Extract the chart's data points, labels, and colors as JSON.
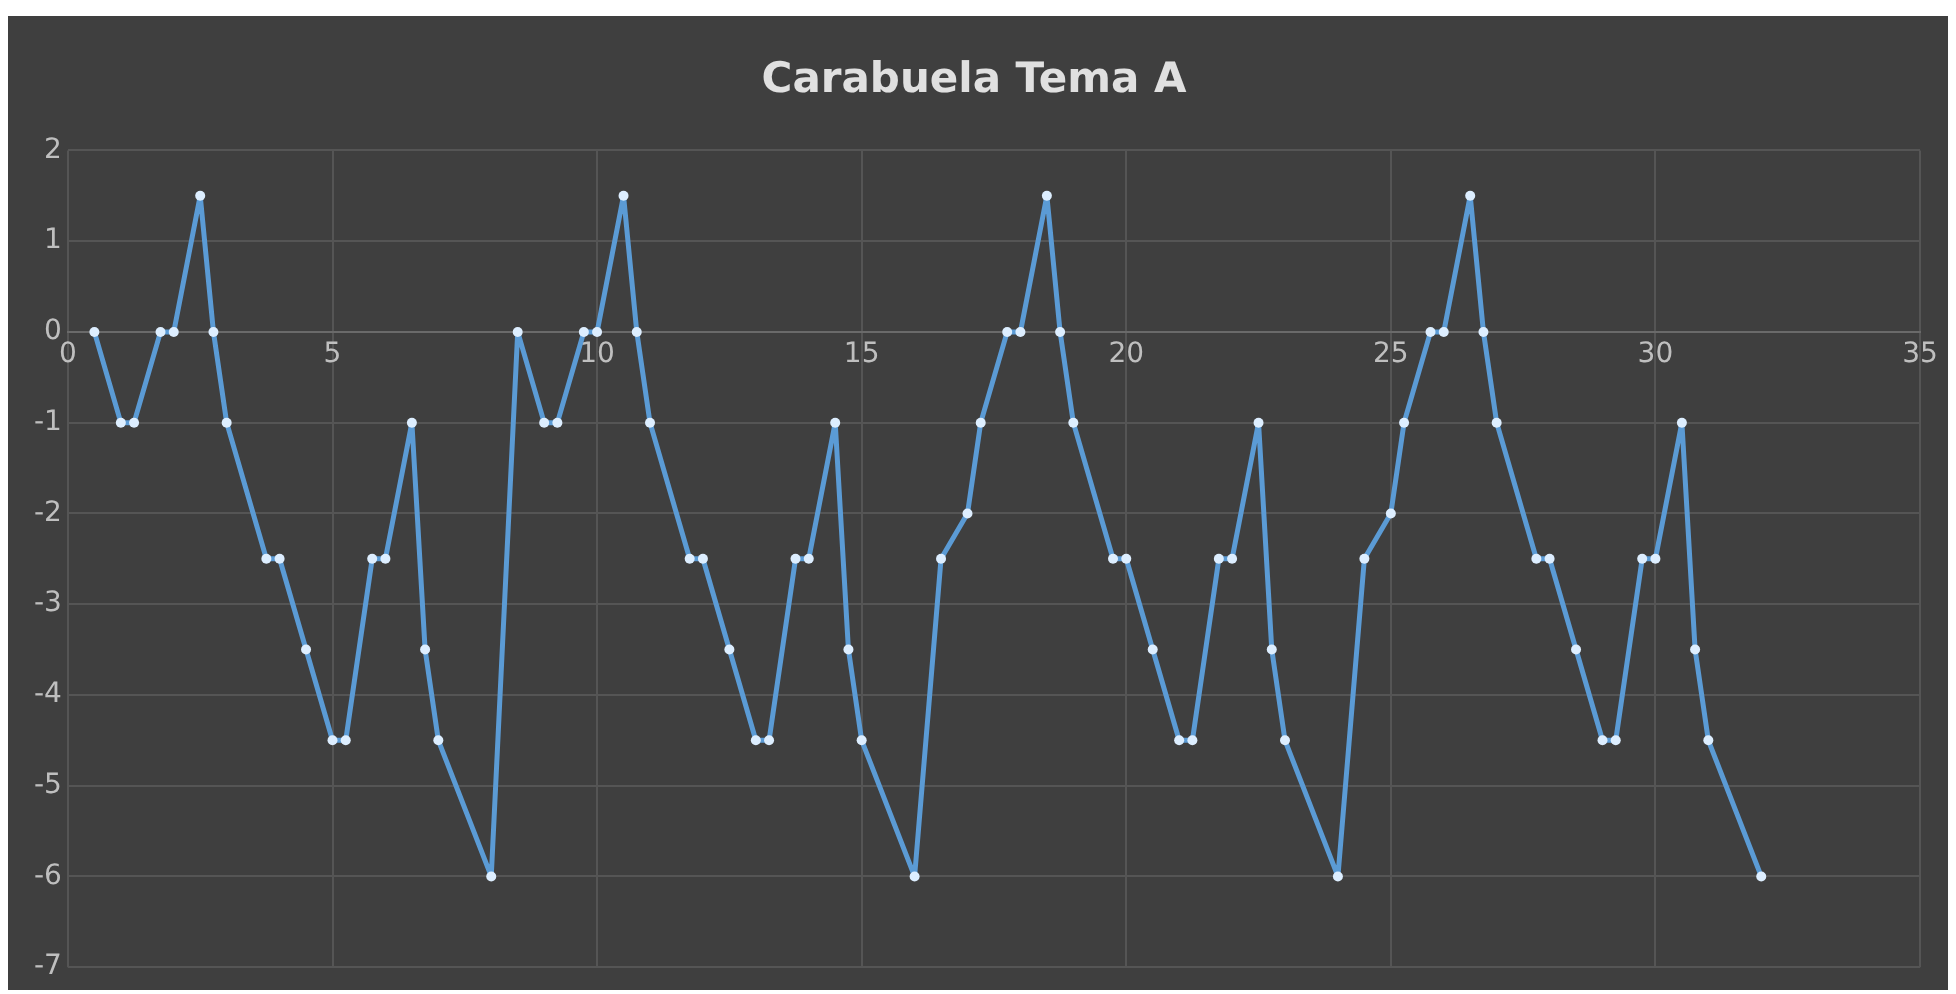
{
  "chart_data": {
    "type": "line",
    "title": "Carabuela Tema A",
    "xlim": [
      0,
      35
    ],
    "xticks": [
      0,
      5,
      10,
      15,
      20,
      25,
      30,
      35
    ],
    "ylim": [
      -7,
      2
    ],
    "yticks": [
      -7,
      -6,
      -5,
      -4,
      -3,
      -2,
      -1,
      0,
      1,
      2
    ],
    "grid": true,
    "legend": false,
    "marker": "circle",
    "line_style": "solid",
    "series": [
      {
        "color": "#5b9bd5",
        "x": [
          0.5,
          1,
          1.25,
          1.75,
          2,
          2.5,
          2.75,
          3,
          3.75,
          4,
          4.5,
          5,
          5.25,
          5.75,
          6,
          6.5,
          6.75,
          7,
          8,
          8.5,
          9,
          9.25,
          9.75,
          10,
          10.5,
          10.75,
          11,
          11.75,
          12,
          12.5,
          13,
          13.25,
          13.75,
          14,
          14.5,
          14.75,
          15,
          16,
          16.5,
          17,
          17.25,
          17.75,
          18,
          18.5,
          18.75,
          19,
          19.75,
          20,
          20.5,
          21,
          21.25,
          21.75,
          22,
          22.5,
          22.75,
          23,
          24,
          24.5,
          25,
          25.25,
          25.75,
          26,
          26.5,
          26.75,
          27,
          27.75,
          28,
          28.5,
          29,
          29.25,
          29.75,
          30,
          30.5,
          30.75,
          31,
          32
        ],
        "values": [
          0,
          -1,
          -1,
          0,
          0,
          1.5,
          0,
          -1,
          -2.5,
          -2.5,
          -3.5,
          -4.5,
          -4.5,
          -2.5,
          -2.5,
          -1,
          -3.5,
          -4.5,
          -6,
          0,
          -1,
          -1,
          0,
          0,
          1.5,
          0,
          -1,
          -2.5,
          -2.5,
          -3.5,
          -4.5,
          -4.5,
          -2.5,
          -2.5,
          -1,
          -3.5,
          -4.5,
          -6,
          -2.5,
          -2,
          -1,
          0,
          0,
          1.5,
          0,
          -1,
          -2.5,
          -2.5,
          -3.5,
          -4.5,
          -4.5,
          -2.5,
          -2.5,
          -1,
          -3.5,
          -4.5,
          -6,
          -2.5,
          -2,
          -1,
          0,
          0,
          1.5,
          0,
          -1,
          -2.5,
          -2.5,
          -3.5,
          -4.5,
          -4.5,
          -2.5,
          -2.5,
          -1,
          -3.5,
          -4.5,
          -6
        ]
      }
    ]
  }
}
